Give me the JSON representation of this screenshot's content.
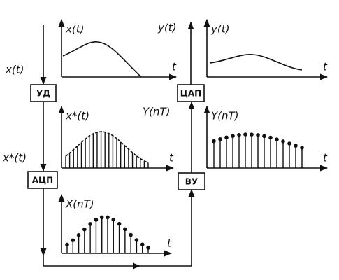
{
  "left_chain": {
    "input_label": "x(t)",
    "sampler": "УД",
    "sampled_label": "x*(t)",
    "converter": "АЦП"
  },
  "right_chain": {
    "output_label": "y(t)",
    "converter": "ЦАП",
    "input_label": "Y(nT)",
    "processor": "ВУ"
  },
  "plots": [
    {
      "label": "x(t)",
      "axis": "t"
    },
    {
      "label": "x*(t)",
      "axis": "t"
    },
    {
      "label": "X(nT)",
      "axis": "t"
    },
    {
      "label": "y(t)",
      "axis": "t"
    },
    {
      "label": "Y(nT)",
      "axis": "t"
    }
  ]
}
